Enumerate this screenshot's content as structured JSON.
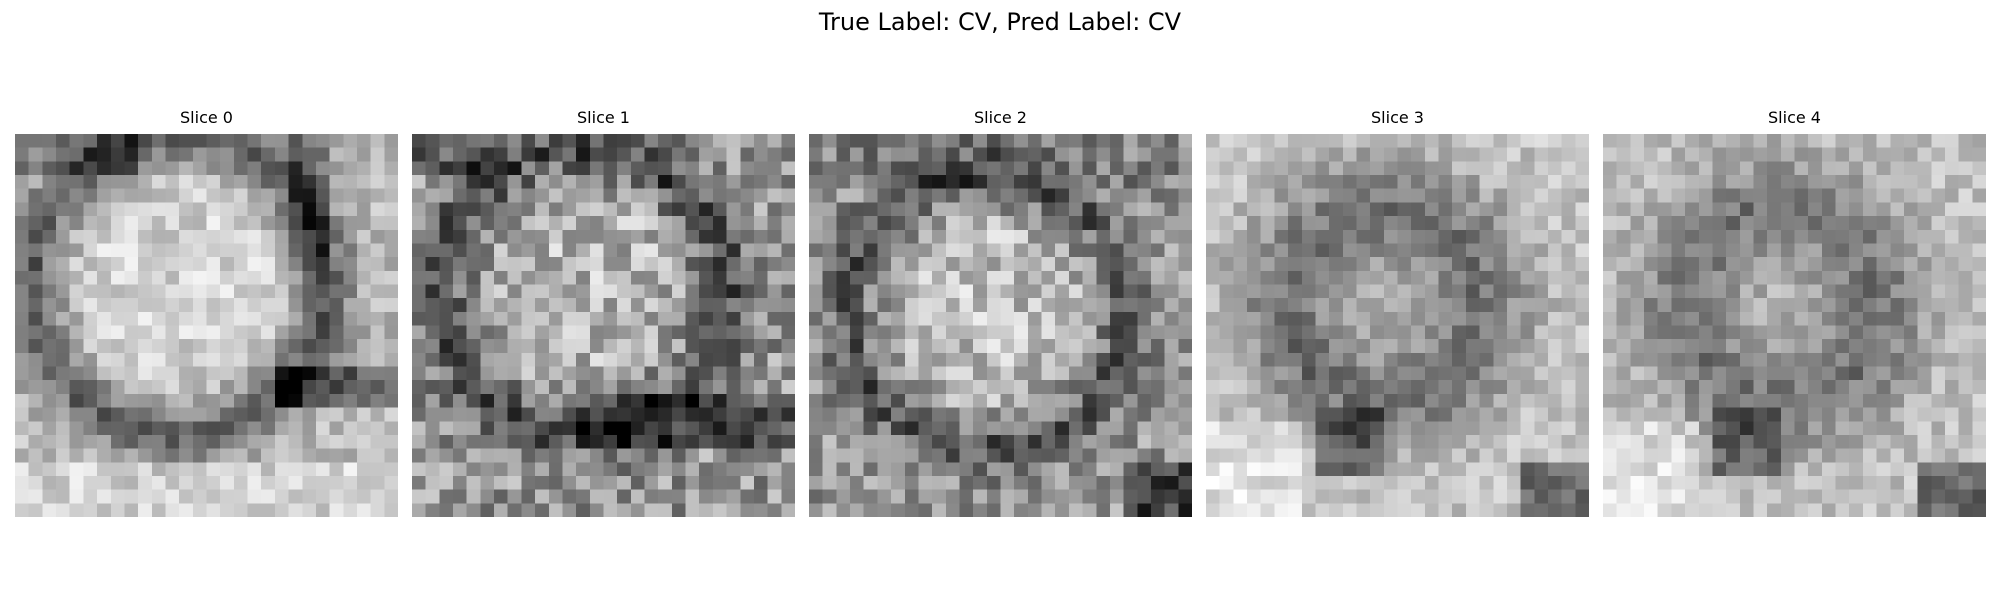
{
  "figure": {
    "title": "True Label: CV, Pred Label: CV"
  },
  "slices": [
    {
      "title": "Slice 0"
    },
    {
      "title": "Slice 1"
    },
    {
      "title": "Slice 2"
    },
    {
      "title": "Slice 3"
    },
    {
      "title": "Slice 4"
    }
  ],
  "colormap": "gray"
}
